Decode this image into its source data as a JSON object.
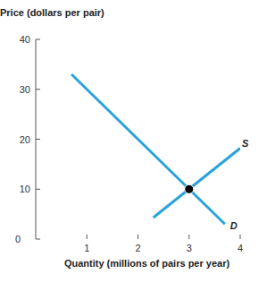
{
  "chart_data": {
    "type": "line",
    "y_label": "Price (dollars per pair)",
    "x_label": "Quantity (millions of pairs per year)",
    "xlim": [
      0,
      4
    ],
    "ylim": [
      0,
      40
    ],
    "xticks": [
      1,
      2,
      3,
      4
    ],
    "yticks": [
      0,
      10,
      20,
      30,
      40
    ],
    "grid": false,
    "series": [
      {
        "name": "S",
        "color": "#29a3db",
        "x": [
          2.3,
          4
        ],
        "values": [
          4.3,
          18.2
        ]
      },
      {
        "name": "D",
        "color": "#29a3db",
        "x": [
          0.7,
          3.7
        ],
        "values": [
          33,
          3
        ]
      }
    ],
    "equilibrium": {
      "x": 3,
      "y": 10,
      "color": "#000000"
    }
  }
}
